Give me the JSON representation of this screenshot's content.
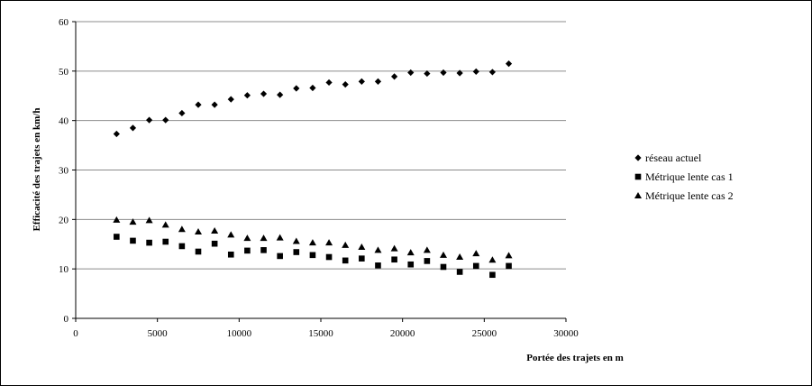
{
  "chart_data": {
    "type": "scatter",
    "title": "",
    "xlabel": "Portée des trajets en m",
    "ylabel": "Efficacité des trajets en km/h",
    "xlim": [
      0,
      30000
    ],
    "ylim": [
      0,
      60
    ],
    "xticks": [
      0,
      5000,
      10000,
      15000,
      20000,
      25000,
      30000
    ],
    "yticks": [
      0,
      10,
      20,
      30,
      40,
      50,
      60
    ],
    "grid": "horizontal",
    "legend_position": "right",
    "series": [
      {
        "name": "réseau actuel",
        "marker": "diamond",
        "color": "#000000",
        "x": [
          2500,
          3500,
          4500,
          5500,
          6500,
          7500,
          8500,
          9500,
          10500,
          11500,
          12500,
          13500,
          14500,
          15500,
          16500,
          17500,
          18500,
          19500,
          20500,
          21500,
          22500,
          23500,
          24500,
          25500,
          26500
        ],
        "y": [
          37.3,
          38.5,
          40.1,
          40.1,
          41.5,
          43.2,
          43.2,
          44.3,
          45.1,
          45.4,
          45.2,
          46.5,
          46.6,
          47.7,
          47.3,
          47.9,
          47.9,
          48.9,
          49.7,
          49.5,
          49.7,
          49.6,
          49.9,
          49.8,
          51.5
        ]
      },
      {
        "name": "Métrique lente cas 1",
        "marker": "square",
        "color": "#000000",
        "x": [
          2500,
          3500,
          4500,
          5500,
          6500,
          7500,
          8500,
          9500,
          10500,
          11500,
          12500,
          13500,
          14500,
          15500,
          16500,
          17500,
          18500,
          19500,
          20500,
          21500,
          22500,
          23500,
          24500,
          25500,
          26500
        ],
        "y": [
          16.5,
          15.7,
          15.3,
          15.5,
          14.6,
          13.5,
          15.1,
          12.9,
          13.7,
          13.8,
          12.6,
          13.4,
          12.8,
          12.4,
          11.7,
          12.1,
          10.7,
          11.9,
          10.9,
          11.6,
          10.4,
          9.4,
          10.6,
          8.8,
          10.6
        ]
      },
      {
        "name": "Métrique lente cas 2",
        "marker": "triangle",
        "color": "#000000",
        "x": [
          2500,
          3500,
          4500,
          5500,
          6500,
          7500,
          8500,
          9500,
          10500,
          11500,
          12500,
          13500,
          14500,
          15500,
          16500,
          17500,
          18500,
          19500,
          20500,
          21500,
          22500,
          23500,
          24500,
          25500,
          26500
        ],
        "y": [
          19.9,
          19.5,
          19.8,
          18.9,
          18.0,
          17.5,
          17.7,
          16.9,
          16.2,
          16.2,
          16.3,
          15.6,
          15.3,
          15.3,
          14.8,
          14.4,
          13.8,
          14.1,
          13.3,
          13.8,
          12.8,
          12.4,
          13.1,
          11.8,
          12.7
        ]
      }
    ]
  }
}
